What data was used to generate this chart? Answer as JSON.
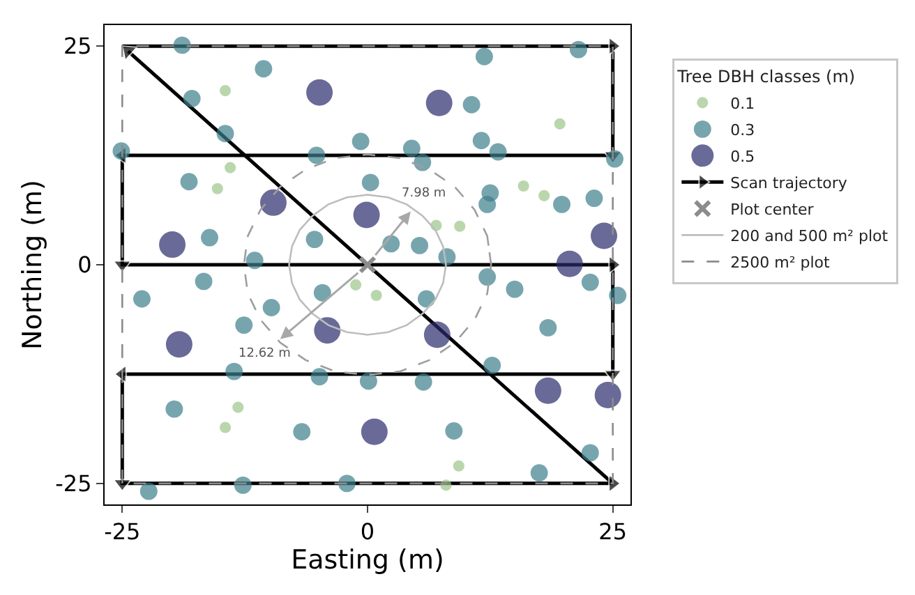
{
  "chart_data": {
    "type": "bubble",
    "xlabel": "Easting (m)",
    "ylabel": "Northing (m)",
    "legend_title": "Tree DBH classes (m)",
    "xlim": [
      -26.8,
      26.8
    ],
    "ylim": [
      -27.4,
      27.4
    ],
    "xticks": [
      -25,
      0,
      25
    ],
    "yticks": [
      -25,
      0,
      25
    ],
    "legend": "right",
    "series": [
      {
        "name": "Scan trajectory",
        "type": "line",
        "color": "#000000",
        "marker": "triangle",
        "line_style": "solid",
        "x": [
          -25,
          25,
          25,
          -25,
          -25,
          25,
          25,
          -25,
          -25,
          25,
          -24.4
        ],
        "values": [
          25,
          25,
          12.5,
          12.5,
          0,
          0,
          -12.5,
          -12.5,
          -25,
          -25,
          24.4
        ]
      },
      {
        "name": "0.1",
        "color": "#9cc58a",
        "marker": "circle",
        "x": [
          -14.5,
          -14.0,
          -15.3,
          19.6,
          15.9,
          18.0,
          7.0,
          9.4,
          -1.2,
          0.9,
          -13.2,
          -14.5,
          9.3,
          8.0
        ],
        "values": [
          19.9,
          11.1,
          8.7,
          16.1,
          9.0,
          7.9,
          4.5,
          4.4,
          -2.3,
          -3.5,
          -16.3,
          -18.6,
          -23.0,
          -25.2
        ],
        "sizes": [
          0.18,
          0.18,
          0.18,
          0.18,
          0.18,
          0.18,
          0.18,
          0.18,
          0.18,
          0.18,
          0.18,
          0.18,
          0.18,
          0.18
        ]
      },
      {
        "name": "0.3",
        "color": "#3d7f8c",
        "marker": "circle",
        "x": [
          -18.9,
          -10.6,
          -17.9,
          -14.5,
          -25.1,
          -0.7,
          -5.2,
          -18.2,
          0.3,
          -16.1,
          -5.4,
          -11.5,
          11.9,
          21.5,
          10.6,
          4.5,
          11.6,
          13.3,
          5.6,
          25.2,
          12.5,
          12.2,
          19.8,
          23.1,
          2.4,
          5.3,
          8.1,
          -16.7,
          -23.0,
          -4.6,
          -9.8,
          -12.6,
          -13.6,
          -4.9,
          0.1,
          -19.7,
          -6.7,
          -22.3,
          -12.7,
          -2.1,
          12.2,
          15.0,
          22.7,
          25.5,
          6.0,
          18.4,
          12.7,
          5.7,
          8.8,
          22.7,
          17.5
        ],
        "values": [
          25.1,
          22.4,
          19.0,
          15.0,
          13.0,
          14.1,
          12.5,
          9.5,
          9.4,
          3.1,
          2.9,
          0.5,
          23.8,
          24.6,
          18.3,
          13.3,
          14.2,
          12.9,
          11.7,
          12.1,
          8.2,
          6.9,
          6.9,
          7.6,
          2.4,
          2.2,
          0.9,
          -1.9,
          -3.9,
          -3.2,
          -4.9,
          -6.9,
          -12.2,
          -12.8,
          -13.3,
          -16.5,
          -19.1,
          -25.9,
          -25.2,
          -25.0,
          -1.4,
          -2.8,
          -2.0,
          -3.5,
          -3.9,
          -7.2,
          -11.5,
          -13.4,
          -19.0,
          -21.5,
          -23.8
        ],
        "sizes": [
          0.43,
          0.43,
          0.43,
          0.43,
          0.43,
          0.43,
          0.43,
          0.43,
          0.43,
          0.43,
          0.43,
          0.43,
          0.43,
          0.43,
          0.43,
          0.43,
          0.43,
          0.43,
          0.43,
          0.43,
          0.43,
          0.43,
          0.43,
          0.43,
          0.43,
          0.43,
          0.43,
          0.43,
          0.43,
          0.43,
          0.43,
          0.43,
          0.43,
          0.43,
          0.43,
          0.43,
          0.43,
          0.43,
          0.43,
          0.43,
          0.43,
          0.43,
          0.43,
          0.43,
          0.43,
          0.43,
          0.43,
          0.43,
          0.43,
          0.43,
          0.43
        ]
      },
      {
        "name": "0.5",
        "color": "#2a2b6b",
        "marker": "circle",
        "x": [
          -4.9,
          7.3,
          -9.6,
          -0.1,
          -19.9,
          24.1,
          20.6,
          -4.1,
          -19.2,
          7.1,
          18.4,
          24.5,
          0.7
        ],
        "values": [
          19.7,
          18.5,
          7.1,
          5.7,
          2.3,
          3.3,
          0.1,
          -7.5,
          -9.1,
          -8.0,
          -14.4,
          -14.9,
          -19.1
        ],
        "sizes": [
          1,
          1,
          1,
          1,
          1,
          1,
          1,
          1,
          1,
          1,
          1,
          1,
          1
        ]
      },
      {
        "name": "Plot center",
        "type": "scatter",
        "color": "#8c8c8c",
        "marker": "cross",
        "x": [
          0
        ],
        "values": [
          0
        ]
      },
      {
        "name": "200 and 500 m² plot",
        "type": "line",
        "color": "#bdbdbd",
        "marker": "none",
        "line_style": "solid",
        "x": [
          8.0,
          7.7,
          6.9,
          5.6,
          4.0,
          2.1,
          0,
          -2.1,
          -4.0,
          -5.6,
          -6.9,
          -7.7,
          -8.0,
          -7.7,
          -6.9,
          -5.6,
          -4.0,
          -2.1,
          0,
          2.1,
          4.0,
          5.6,
          6.9,
          7.7,
          8.0,
          7.7
        ],
        "values": [
          0,
          2.1,
          4.0,
          5.6,
          6.9,
          7.7,
          8.0,
          7.7,
          6.9,
          5.6,
          4.0,
          2.1,
          0,
          -2.1,
          -4.0,
          -5.6,
          -6.9,
          -7.7,
          -8.0,
          -7.7,
          -6.9,
          -5.6,
          -4.0,
          -2.1,
          0,
          2.1
        ]
      },
      {
        "name": "2500 m² plot",
        "type": "line",
        "color": "#8c8c8c",
        "marker": "none",
        "line_style": "dashed",
        "x": [
          -25,
          -25,
          25,
          25,
          -25,
          -25
        ],
        "values": [
          -25,
          25,
          25,
          -25,
          -25,
          0
        ]
      },
      {
        "type": "line",
        "color": "#9e9e9e",
        "marker": "none",
        "line_style": "dashed",
        "x": [
          12.6,
          12.2,
          10.9,
          8.9,
          6.3,
          3.3,
          0,
          -3.3,
          -6.3,
          -8.9,
          -10.9,
          -12.2,
          -12.6,
          -12.2,
          -10.9,
          -8.9,
          -6.3,
          -3.3,
          0,
          3.3,
          6.3,
          8.9,
          10.9,
          12.2,
          12.6,
          12.2
        ],
        "values": [
          0,
          3.3,
          6.3,
          8.9,
          10.9,
          12.2,
          12.6,
          12.2,
          10.9,
          8.9,
          6.3,
          3.3,
          0,
          -3.3,
          -6.3,
          -8.9,
          -10.9,
          -12.2,
          -12.6,
          -12.2,
          -10.9,
          -8.9,
          -6.3,
          -3.3,
          0,
          3.3
        ]
      }
    ],
    "annotations": [
      {
        "text": "7.98 m",
        "x": 4.4,
        "y": 6.1
      },
      {
        "text": "12.62 m",
        "x": -8.9,
        "y": -8.5
      }
    ]
  }
}
